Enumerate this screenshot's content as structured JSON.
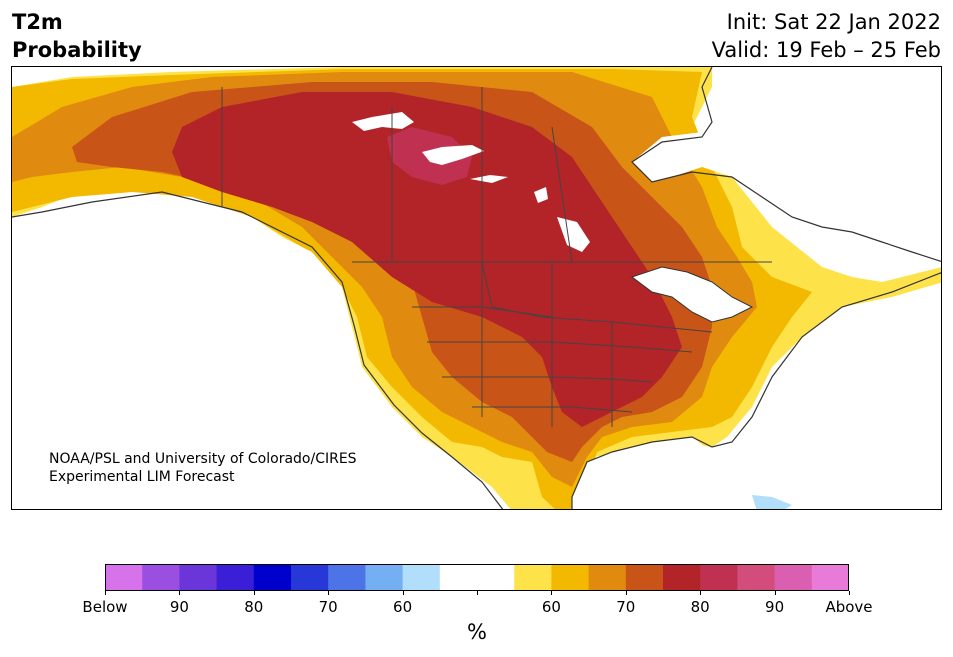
{
  "title": {
    "line1": "T2m",
    "line2": "Probability"
  },
  "info": {
    "init": "Init: Sat 22 Jan 2022",
    "valid": "Valid: 19 Feb – 25 Feb"
  },
  "credit": {
    "line1": "NOAA/PSL and University of Colorado/CIRES",
    "line2": "Experimental LIM Forecast"
  },
  "colorbar": {
    "colors": [
      "#d673ea",
      "#9b4fe0",
      "#6a35d9",
      "#3a1fd6",
      "#0000cc",
      "#2838d8",
      "#4d74e6",
      "#74aef3",
      "#b0defb",
      "#ffffff",
      "#ffffff",
      "#fde24a",
      "#f3b800",
      "#e08a10",
      "#c95418",
      "#b22428",
      "#c03050",
      "#d24d7c",
      "#da5fb0",
      "#e87ad8"
    ],
    "labels": [
      "Below",
      "90",
      "80",
      "70",
      "60",
      "",
      "60",
      "70",
      "80",
      "90",
      "Above"
    ],
    "units": "%"
  },
  "legend_colors": {
    "above_60": "#fde24a",
    "above_65": "#f3b800",
    "above_70": "#e08a10",
    "above_75": "#c95418",
    "above_80": "#b22428",
    "above_85": "#c03050",
    "below_60": "#b0defb"
  }
}
